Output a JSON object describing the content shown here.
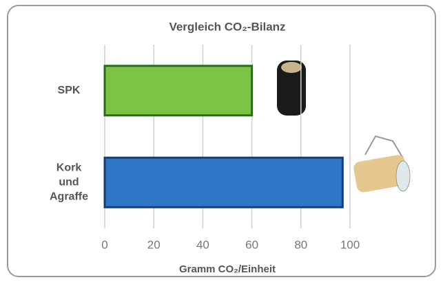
{
  "chart_data": {
    "type": "barh",
    "title": "Vergleich CO₂-Bilanz",
    "x_label": "Gramm CO₂/Einheit",
    "categories": [
      "SPK",
      "Kork und Agraffe"
    ],
    "values": [
      60,
      97
    ],
    "colors": [
      "#7cc243",
      "#2f76c4"
    ],
    "xlim": [
      0,
      100
    ],
    "xticks": [
      0,
      20,
      40,
      60,
      80,
      100
    ],
    "grid": true
  }
}
